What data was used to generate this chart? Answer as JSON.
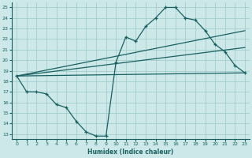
{
  "xlabel": "Humidex (Indice chaleur)",
  "bg_color": "#cce8e8",
  "grid_color": "#9ec8c8",
  "line_color": "#1a6060",
  "xlim": [
    -0.5,
    23.5
  ],
  "ylim": [
    12.5,
    25.5
  ],
  "yticks": [
    13,
    14,
    15,
    16,
    17,
    18,
    19,
    20,
    21,
    22,
    23,
    24,
    25
  ],
  "xticks": [
    0,
    1,
    2,
    3,
    4,
    5,
    6,
    7,
    8,
    9,
    10,
    11,
    12,
    13,
    14,
    15,
    16,
    17,
    18,
    19,
    20,
    21,
    22,
    23
  ],
  "line1_x": [
    0,
    1,
    2,
    3,
    4,
    5,
    6,
    7,
    8,
    9,
    10,
    11,
    12,
    13,
    14,
    15,
    16,
    17,
    18,
    19,
    20,
    21,
    22,
    23
  ],
  "line1_y": [
    18.5,
    17.0,
    17.0,
    16.8,
    15.8,
    15.5,
    14.2,
    13.2,
    12.8,
    12.8,
    19.8,
    22.2,
    21.8,
    23.2,
    24.0,
    25.0,
    25.0,
    24.0,
    23.8,
    22.8,
    21.5,
    20.8,
    19.5,
    18.8
  ],
  "line2_x": [
    0,
    23
  ],
  "line2_y": [
    18.5,
    22.8
  ],
  "line3_x": [
    0,
    23
  ],
  "line3_y": [
    18.5,
    21.2
  ],
  "line4_x": [
    0,
    23
  ],
  "line4_y": [
    18.5,
    18.8
  ]
}
